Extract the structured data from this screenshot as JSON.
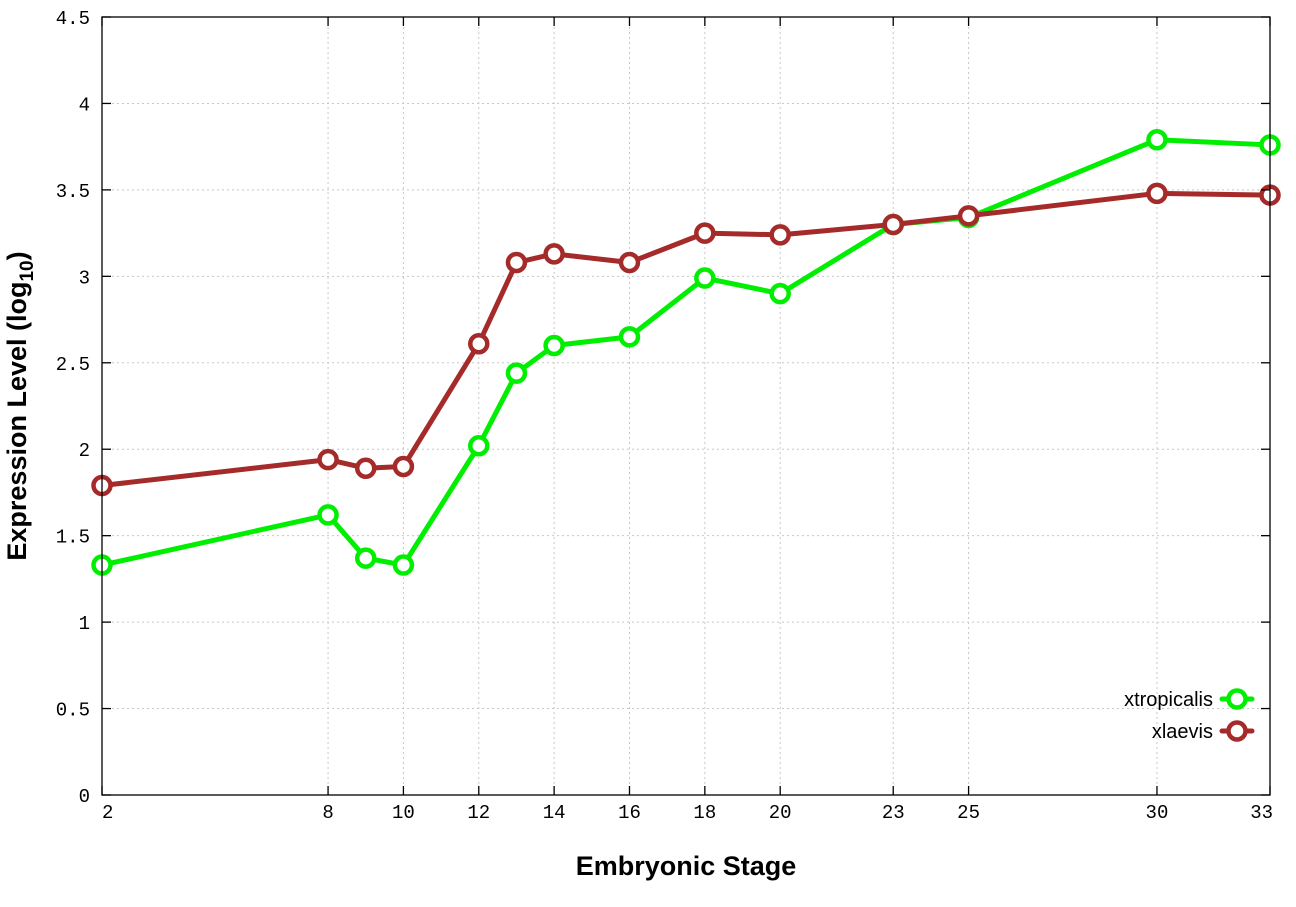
{
  "chart_data": {
    "type": "line",
    "xlabel": "Embryonic Stage",
    "ylabel_main": "Expression Level (log",
    "ylabel_sub": "10",
    "ylabel_close": ")",
    "x_categories": [
      "2",
      "8",
      "9",
      "10",
      "12",
      "13",
      "14",
      "16",
      "18",
      "20",
      "23",
      "25",
      "30",
      "33"
    ],
    "x_tick_labels": [
      "2",
      "8",
      "10",
      "12",
      "14",
      "16",
      "18",
      "20",
      "23",
      "25",
      "30",
      "33"
    ],
    "ylim": [
      0,
      4.5
    ],
    "y_ticks": [
      0,
      0.5,
      1,
      1.5,
      2,
      2.5,
      3,
      3.5,
      4,
      4.5
    ],
    "y_tick_labels": [
      "0",
      "0.5",
      "1",
      "1.5",
      "2",
      "2.5",
      "3",
      "3.5",
      "4",
      "4.5"
    ],
    "grid": true,
    "legend_position": "bottom-right",
    "series": [
      {
        "name": "xtropicalis",
        "color": "#00ee00",
        "values": [
          1.33,
          1.62,
          1.37,
          1.33,
          2.02,
          2.44,
          2.6,
          2.65,
          2.99,
          2.9,
          3.3,
          3.34,
          3.79,
          3.76
        ]
      },
      {
        "name": "xlaevis",
        "color": "#a52a2a",
        "values": [
          1.79,
          1.94,
          1.89,
          1.9,
          2.61,
          3.08,
          3.13,
          3.08,
          3.25,
          3.24,
          3.3,
          3.35,
          3.48,
          3.47
        ]
      }
    ]
  }
}
